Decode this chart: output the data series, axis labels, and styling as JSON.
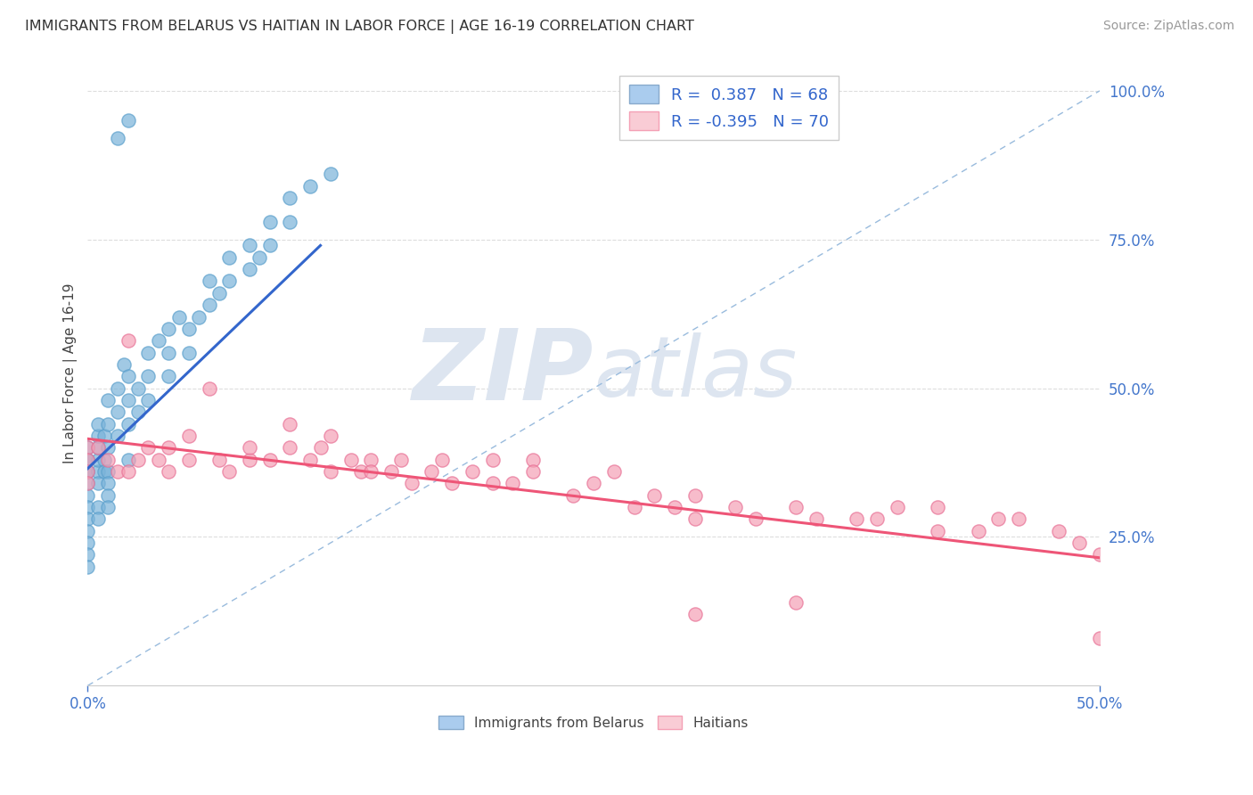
{
  "title": "IMMIGRANTS FROM BELARUS VS HAITIAN IN LABOR FORCE | AGE 16-19 CORRELATION CHART",
  "source": "Source: ZipAtlas.com",
  "ylabel": "In Labor Force | Age 16-19",
  "blue_color": "#7ab3d9",
  "blue_edge": "#5a9fcc",
  "pink_color": "#f4a0b5",
  "pink_edge": "#e87095",
  "trend_blue": "#3366cc",
  "trend_pink": "#ee5577",
  "ref_dash_color": "#99bbdd",
  "watermark_color": "#dde5f0",
  "xlim": [
    0.0,
    0.5
  ],
  "ylim": [
    0.0,
    1.05
  ],
  "right_yticks": [
    0.25,
    0.5,
    0.75,
    1.0
  ],
  "right_yticklabels": [
    "25.0%",
    "50.0%",
    "75.0%",
    "100.0%"
  ],
  "blue_scatter_x": [
    0.0,
    0.0,
    0.0,
    0.0,
    0.0,
    0.0,
    0.0,
    0.0,
    0.005,
    0.005,
    0.005,
    0.005,
    0.005,
    0.005,
    0.008,
    0.008,
    0.008,
    0.01,
    0.01,
    0.01,
    0.01,
    0.01,
    0.015,
    0.015,
    0.015,
    0.018,
    0.02,
    0.02,
    0.02,
    0.02,
    0.025,
    0.025,
    0.03,
    0.03,
    0.03,
    0.035,
    0.04,
    0.04,
    0.04,
    0.045,
    0.05,
    0.05,
    0.055,
    0.06,
    0.06,
    0.065,
    0.07,
    0.07,
    0.08,
    0.08,
    0.085,
    0.09,
    0.09,
    0.1,
    0.1,
    0.11,
    0.12,
    0.0,
    0.0,
    0.0,
    0.0,
    0.0,
    0.005,
    0.005,
    0.01,
    0.01,
    0.015,
    0.02
  ],
  "blue_scatter_y": [
    0.36,
    0.38,
    0.38,
    0.4,
    0.34,
    0.36,
    0.32,
    0.3,
    0.36,
    0.38,
    0.4,
    0.42,
    0.44,
    0.34,
    0.38,
    0.42,
    0.36,
    0.4,
    0.44,
    0.48,
    0.36,
    0.34,
    0.46,
    0.5,
    0.42,
    0.54,
    0.44,
    0.48,
    0.52,
    0.38,
    0.5,
    0.46,
    0.52,
    0.56,
    0.48,
    0.58,
    0.52,
    0.56,
    0.6,
    0.62,
    0.56,
    0.6,
    0.62,
    0.64,
    0.68,
    0.66,
    0.68,
    0.72,
    0.7,
    0.74,
    0.72,
    0.74,
    0.78,
    0.78,
    0.82,
    0.84,
    0.86,
    0.28,
    0.26,
    0.24,
    0.22,
    0.2,
    0.3,
    0.28,
    0.32,
    0.3,
    0.92,
    0.95
  ],
  "pink_scatter_x": [
    0.0,
    0.0,
    0.0,
    0.0,
    0.005,
    0.01,
    0.015,
    0.02,
    0.02,
    0.025,
    0.03,
    0.035,
    0.04,
    0.04,
    0.05,
    0.05,
    0.06,
    0.065,
    0.07,
    0.08,
    0.08,
    0.09,
    0.1,
    0.1,
    0.11,
    0.115,
    0.12,
    0.12,
    0.13,
    0.135,
    0.14,
    0.14,
    0.15,
    0.155,
    0.16,
    0.17,
    0.175,
    0.18,
    0.19,
    0.2,
    0.2,
    0.21,
    0.22,
    0.22,
    0.24,
    0.25,
    0.26,
    0.27,
    0.28,
    0.29,
    0.3,
    0.3,
    0.32,
    0.33,
    0.35,
    0.36,
    0.38,
    0.39,
    0.4,
    0.42,
    0.44,
    0.45,
    0.46,
    0.48,
    0.49,
    0.5,
    0.3,
    0.35,
    0.42,
    0.5
  ],
  "pink_scatter_y": [
    0.4,
    0.38,
    0.36,
    0.34,
    0.4,
    0.38,
    0.36,
    0.58,
    0.36,
    0.38,
    0.4,
    0.38,
    0.36,
    0.4,
    0.38,
    0.42,
    0.5,
    0.38,
    0.36,
    0.38,
    0.4,
    0.38,
    0.4,
    0.44,
    0.38,
    0.4,
    0.42,
    0.36,
    0.38,
    0.36,
    0.38,
    0.36,
    0.36,
    0.38,
    0.34,
    0.36,
    0.38,
    0.34,
    0.36,
    0.38,
    0.34,
    0.34,
    0.38,
    0.36,
    0.32,
    0.34,
    0.36,
    0.3,
    0.32,
    0.3,
    0.28,
    0.32,
    0.3,
    0.28,
    0.3,
    0.28,
    0.28,
    0.28,
    0.3,
    0.26,
    0.26,
    0.28,
    0.28,
    0.26,
    0.24,
    0.22,
    0.12,
    0.14,
    0.3,
    0.08
  ],
  "blue_trend_x0": 0.0,
  "blue_trend_x1": 0.115,
  "blue_trend_y0": 0.365,
  "blue_trend_y1": 0.74,
  "pink_trend_x0": 0.0,
  "pink_trend_x1": 0.5,
  "pink_trend_y0": 0.415,
  "pink_trend_y1": 0.215
}
